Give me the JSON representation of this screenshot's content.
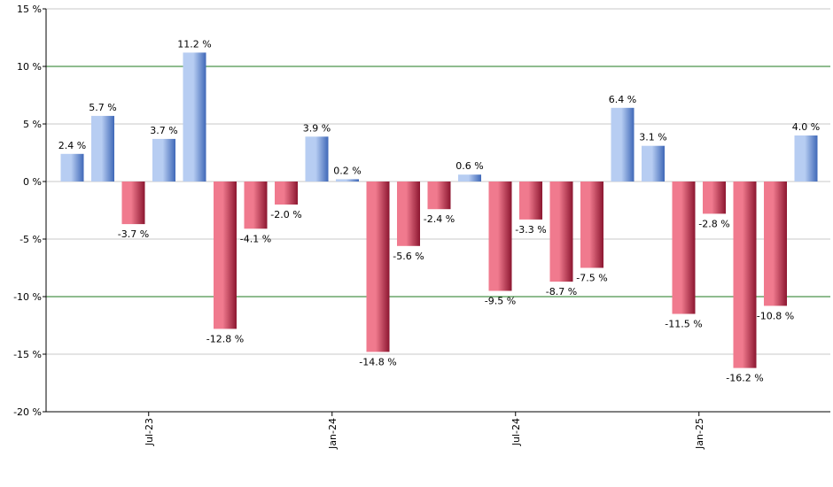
{
  "chart_data": {
    "type": "bar",
    "title": "",
    "xlabel": "",
    "ylabel": "",
    "ylim": [
      -20,
      15
    ],
    "y_ticks": [
      15,
      10,
      5,
      0,
      -5,
      -10,
      -15,
      -20
    ],
    "y_tick_labels": [
      "15 %",
      "10 %",
      "5 %",
      "0 %",
      "-5 %",
      "-10 %",
      "-15 %",
      "-20 %"
    ],
    "highlight_lines": [
      10,
      -10
    ],
    "x_tick_labels": [
      {
        "index": 2.5,
        "label": "Jul-23"
      },
      {
        "index": 8.5,
        "label": "Jan-24"
      },
      {
        "index": 14.5,
        "label": "Jul-24"
      },
      {
        "index": 20.5,
        "label": "Jan-25"
      }
    ],
    "values": [
      2.4,
      5.7,
      -3.7,
      3.7,
      11.2,
      -12.8,
      -4.1,
      -2.0,
      3.9,
      0.2,
      -14.8,
      -5.6,
      -2.4,
      0.6,
      -9.5,
      -3.3,
      -8.7,
      -7.5,
      6.4,
      3.1,
      -11.5,
      -2.8,
      -16.2,
      -10.8,
      4.0
    ],
    "labels": [
      "2.4 %",
      "5.7 %",
      "-3.7 %",
      "3.7 %",
      "11.2 %",
      "-12.8 %",
      "-4.1 %",
      "-2.0 %",
      "3.9 %",
      "0.2 %",
      "-14.8 %",
      "-5.6 %",
      "-2.4 %",
      "0.6 %",
      "-9.5 %",
      "-3.3 %",
      "-8.7 %",
      "-7.5 %",
      "6.4 %",
      "3.1 %",
      "-11.5 %",
      "-2.8 %",
      "-16.2 %",
      "-10.8 %",
      "4.0 %"
    ]
  },
  "colors": {
    "positive_light": "#b7cdf2",
    "positive_dark": "#3f68b8",
    "negative_light": "#f07a8e",
    "negative_dark": "#8c1630",
    "grid": "#c8c8c8",
    "highlight": "#1f7a1f",
    "axis": "#000000"
  }
}
